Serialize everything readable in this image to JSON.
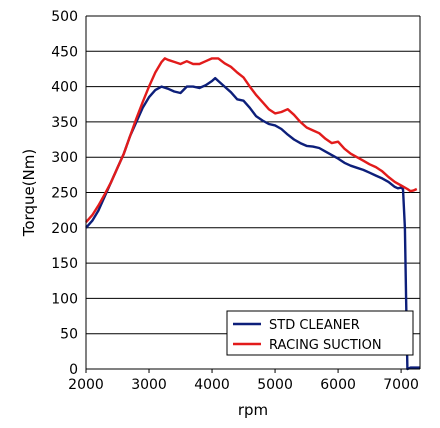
{
  "chart_data": {
    "type": "line",
    "xlabel": "rpm",
    "ylabel": "Torque(Nm)",
    "xlim": [
      2000,
      7300
    ],
    "ylim": [
      0,
      500
    ],
    "x_ticks": [
      2000,
      3000,
      4000,
      5000,
      6000,
      7000
    ],
    "y_ticks": [
      0,
      50,
      100,
      150,
      200,
      250,
      300,
      350,
      400,
      450,
      500
    ],
    "grid": "horizontal",
    "legend_position": "bottom-right",
    "series": [
      {
        "name": "STD CLEANER",
        "color": "#0d1f7a",
        "points": [
          [
            2000,
            200
          ],
          [
            2100,
            210
          ],
          [
            2200,
            225
          ],
          [
            2300,
            245
          ],
          [
            2400,
            265
          ],
          [
            2500,
            285
          ],
          [
            2600,
            305
          ],
          [
            2700,
            330
          ],
          [
            2800,
            350
          ],
          [
            2900,
            370
          ],
          [
            3000,
            385
          ],
          [
            3100,
            395
          ],
          [
            3200,
            400
          ],
          [
            3300,
            397
          ],
          [
            3400,
            393
          ],
          [
            3500,
            391
          ],
          [
            3600,
            400
          ],
          [
            3700,
            400
          ],
          [
            3800,
            398
          ],
          [
            3900,
            402
          ],
          [
            4000,
            408
          ],
          [
            4050,
            412
          ],
          [
            4100,
            408
          ],
          [
            4200,
            400
          ],
          [
            4300,
            392
          ],
          [
            4400,
            382
          ],
          [
            4500,
            380
          ],
          [
            4600,
            370
          ],
          [
            4700,
            358
          ],
          [
            4800,
            352
          ],
          [
            4900,
            347
          ],
          [
            5000,
            345
          ],
          [
            5100,
            340
          ],
          [
            5200,
            332
          ],
          [
            5300,
            325
          ],
          [
            5400,
            320
          ],
          [
            5500,
            316
          ],
          [
            5600,
            315
          ],
          [
            5700,
            313
          ],
          [
            5800,
            308
          ],
          [
            5900,
            303
          ],
          [
            6000,
            298
          ],
          [
            6100,
            292
          ],
          [
            6200,
            288
          ],
          [
            6300,
            285
          ],
          [
            6400,
            282
          ],
          [
            6500,
            278
          ],
          [
            6600,
            274
          ],
          [
            6700,
            270
          ],
          [
            6800,
            265
          ],
          [
            6900,
            258
          ],
          [
            6950,
            256
          ],
          [
            7000,
            257
          ],
          [
            7030,
            255
          ],
          [
            7060,
            200
          ],
          [
            7080,
            100
          ],
          [
            7100,
            0
          ],
          [
            7150,
            2
          ],
          [
            7300,
            2
          ]
        ]
      },
      {
        "name": "RACING SUCTION",
        "color": "#e21b1b",
        "points": [
          [
            2000,
            208
          ],
          [
            2100,
            218
          ],
          [
            2200,
            232
          ],
          [
            2300,
            248
          ],
          [
            2400,
            265
          ],
          [
            2500,
            285
          ],
          [
            2600,
            305
          ],
          [
            2700,
            330
          ],
          [
            2800,
            355
          ],
          [
            2900,
            378
          ],
          [
            3000,
            400
          ],
          [
            3100,
            420
          ],
          [
            3200,
            435
          ],
          [
            3250,
            440
          ],
          [
            3300,
            438
          ],
          [
            3400,
            435
          ],
          [
            3500,
            432
          ],
          [
            3600,
            436
          ],
          [
            3700,
            432
          ],
          [
            3800,
            432
          ],
          [
            3900,
            436
          ],
          [
            4000,
            440
          ],
          [
            4100,
            440
          ],
          [
            4200,
            433
          ],
          [
            4300,
            428
          ],
          [
            4400,
            420
          ],
          [
            4500,
            413
          ],
          [
            4600,
            400
          ],
          [
            4700,
            388
          ],
          [
            4800,
            378
          ],
          [
            4900,
            368
          ],
          [
            5000,
            362
          ],
          [
            5100,
            364
          ],
          [
            5200,
            368
          ],
          [
            5300,
            360
          ],
          [
            5400,
            350
          ],
          [
            5500,
            342
          ],
          [
            5600,
            338
          ],
          [
            5700,
            334
          ],
          [
            5800,
            326
          ],
          [
            5900,
            320
          ],
          [
            6000,
            322
          ],
          [
            6100,
            312
          ],
          [
            6200,
            305
          ],
          [
            6300,
            300
          ],
          [
            6400,
            295
          ],
          [
            6500,
            290
          ],
          [
            6600,
            286
          ],
          [
            6700,
            280
          ],
          [
            6800,
            272
          ],
          [
            6900,
            265
          ],
          [
            7000,
            260
          ],
          [
            7100,
            255
          ],
          [
            7150,
            252
          ],
          [
            7200,
            253
          ],
          [
            7250,
            255
          ]
        ]
      }
    ]
  }
}
